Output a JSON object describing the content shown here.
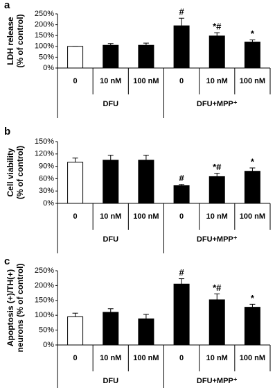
{
  "chart_data": [
    {
      "type": "bar",
      "panel": "a",
      "y_label": [
        "LDH release",
        "(% of control)"
      ],
      "categories": [
        "0",
        "10 nM",
        "100 nM",
        "0",
        "10 nM",
        "100 nM"
      ],
      "groups": [
        "DFU",
        "DFU+MPP⁺"
      ],
      "values": [
        100,
        105,
        105,
        195,
        148,
        120
      ],
      "errors": [
        0,
        8,
        10,
        35,
        15,
        10
      ],
      "colors": [
        "#ffffff",
        "#000000",
        "#000000",
        "#000000",
        "#000000",
        "#000000"
      ],
      "annotations": [
        null,
        null,
        null,
        "#",
        "*#",
        "*"
      ],
      "ylim": [
        0,
        250
      ],
      "yticks": [
        {
          "value": 0,
          "label": "0%"
        },
        {
          "value": 50,
          "label": "50%"
        },
        {
          "value": 100,
          "label": "100%"
        },
        {
          "value": 150,
          "label": "150%"
        },
        {
          "value": 200,
          "label": "200%"
        },
        {
          "value": 250,
          "label": "250%"
        }
      ]
    },
    {
      "type": "bar",
      "panel": "b",
      "y_label": [
        "Cell viability",
        "(% of control)"
      ],
      "categories": [
        "0",
        "10 nM",
        "100 nM",
        "0",
        "10 nM",
        "100 nM"
      ],
      "groups": [
        "DFU",
        "DFU+MPP⁺"
      ],
      "values": [
        100,
        105,
        105,
        43,
        65,
        78
      ],
      "errors": [
        10,
        12,
        12,
        3,
        8,
        8
      ],
      "colors": [
        "#ffffff",
        "#000000",
        "#000000",
        "#000000",
        "#000000",
        "#000000"
      ],
      "annotations": [
        null,
        null,
        null,
        "#",
        "*#",
        "*"
      ],
      "ylim": [
        0,
        150
      ],
      "yticks": [
        {
          "value": 0,
          "label": "0%"
        },
        {
          "value": 30,
          "label": "30%"
        },
        {
          "value": 60,
          "label": "60%"
        },
        {
          "value": 90,
          "label": "90%"
        },
        {
          "value": 120,
          "label": "120%"
        },
        {
          "value": 150,
          "label": "150%"
        }
      ]
    },
    {
      "type": "bar",
      "panel": "c",
      "y_label": [
        "Apoptosis (+)/TH(+)",
        "neurons (% of control)"
      ],
      "categories": [
        "0",
        "10 nM",
        "100 nM",
        "0",
        "10 nM",
        "100 nM"
      ],
      "groups": [
        "DFU",
        "DFU+MPP⁺"
      ],
      "values": [
        95,
        110,
        88,
        205,
        152,
        127
      ],
      "errors": [
        12,
        12,
        15,
        18,
        20,
        10
      ],
      "colors": [
        "#ffffff",
        "#000000",
        "#000000",
        "#000000",
        "#000000",
        "#000000"
      ],
      "annotations": [
        null,
        null,
        null,
        "#",
        "*#",
        "*"
      ],
      "ylim": [
        0,
        250
      ],
      "yticks": [
        {
          "value": 0,
          "label": "0%"
        },
        {
          "value": 50,
          "label": "50%"
        },
        {
          "value": 100,
          "label": "100%"
        },
        {
          "value": 150,
          "label": "150%"
        },
        {
          "value": 200,
          "label": "200%"
        },
        {
          "value": 250,
          "label": "250%"
        }
      ]
    }
  ]
}
